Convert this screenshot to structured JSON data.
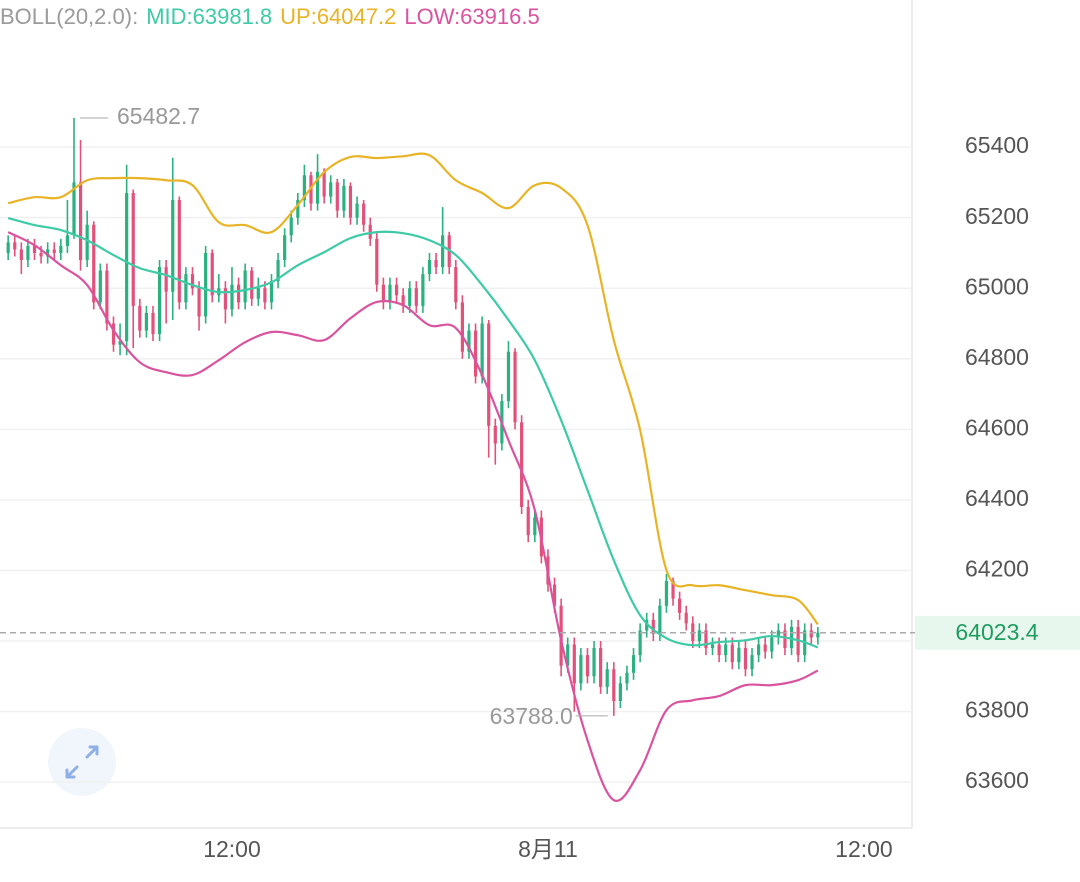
{
  "chart_data": {
    "type": "candlestick",
    "indicator": {
      "name": "BOLL(20,2.0):",
      "mid": "MID:63981.8",
      "up": "UP:64047.2",
      "low": "LOW:63916.5"
    },
    "up_color": "#2bb07f",
    "down_color": "#e2517a",
    "x": [
      0,
      1,
      2,
      3,
      4,
      5,
      6,
      7,
      8,
      9,
      10,
      11,
      12,
      13,
      14,
      15,
      16,
      17,
      18,
      19,
      20,
      21,
      22,
      23,
      24,
      25,
      26,
      27,
      28,
      29,
      30,
      31,
      32,
      33,
      34,
      35,
      36,
      37,
      38,
      39,
      40,
      41,
      42,
      43,
      44,
      45,
      46,
      47,
      48,
      49,
      50,
      51,
      52,
      53,
      54,
      55,
      56,
      57,
      58,
      59,
      60,
      61,
      62,
      63,
      64,
      65,
      66,
      67,
      68,
      69,
      70,
      71,
      72,
      73,
      74,
      75,
      76,
      77,
      78,
      79,
      80,
      81,
      82,
      83,
      84,
      85,
      86,
      87,
      88,
      89,
      90,
      91,
      92,
      93,
      94,
      95,
      96,
      97,
      98,
      99,
      100,
      101,
      102,
      103,
      104,
      105,
      106,
      107,
      108,
      109,
      110,
      111,
      112,
      113,
      114,
      115,
      116,
      117,
      118,
      119,
      120,
      121,
      122,
      123
    ],
    "open": [
      65100,
      65130,
      65110,
      65080,
      65120,
      65100,
      65090,
      65110,
      65100,
      65120,
      65150,
      65300,
      65080,
      65180,
      64960,
      65050,
      64900,
      64840,
      64850,
      65270,
      64950,
      64880,
      64930,
      64870,
      65060,
      64990,
      65250,
      64960,
      65040,
      65000,
      64920,
      65100,
      64980,
      65000,
      64940,
      65010,
      64960,
      65050,
      64970,
      65000,
      64960,
      65020,
      65080,
      65150,
      65200,
      65250,
      65320,
      65240,
      65330,
      65260,
      65300,
      65220,
      65290,
      65200,
      65240,
      65180,
      65140,
      65010,
      64960,
      65010,
      64980,
      64950,
      65000,
      64950,
      65040,
      65080,
      65060,
      65150,
      65060,
      64960,
      64820,
      64880,
      64750,
      64900,
      64610,
      64560,
      64680,
      64820,
      64620,
      64380,
      64300,
      64350,
      64240,
      64160,
      64100,
      63930,
      63990,
      63880,
      63960,
      63900,
      63980,
      63870,
      63920,
      63830,
      63880,
      63910,
      63960,
      64030,
      64060,
      64020,
      64100,
      64170,
      64120,
      64080,
      64050,
      64000,
      64030,
      63980,
      63990,
      63960,
      63990,
      63940,
      63980,
      63920,
      63960,
      63990,
      63970,
      64010,
      64030,
      63980,
      64040,
      63960,
      64030,
      64010
    ],
    "high": [
      65150,
      65150,
      65130,
      65140,
      65140,
      65120,
      65130,
      65130,
      65140,
      65250,
      65482.7,
      65420,
      65220,
      65190,
      65070,
      65070,
      64920,
      64900,
      65350,
      65280,
      64970,
      64950,
      64950,
      65080,
      65080,
      65370,
      65260,
      65060,
      65060,
      65020,
      65120,
      65110,
      65040,
      65020,
      65060,
      65030,
      65070,
      65060,
      65030,
      65020,
      65040,
      65100,
      65170,
      65220,
      65270,
      65350,
      65330,
      65380,
      65340,
      65320,
      65310,
      65310,
      65300,
      65260,
      65250,
      65200,
      65160,
      65030,
      65030,
      65030,
      65000,
      65020,
      65020,
      65060,
      65100,
      65100,
      65230,
      65160,
      65080,
      64980,
      64900,
      64900,
      64920,
      64910,
      64630,
      64700,
      64850,
      64830,
      64640,
      64400,
      64370,
      64370,
      64260,
      64180,
      64120,
      64010,
      64010,
      63980,
      63980,
      64000,
      64000,
      63940,
      63940,
      63900,
      63930,
      63980,
      64050,
      64080,
      64080,
      64120,
      64190,
      64180,
      64140,
      64100,
      64070,
      64050,
      64050,
      64010,
      64010,
      64010,
      64010,
      64000,
      64000,
      63980,
      64010,
      64010,
      64030,
      64050,
      64050,
      64060,
      64060,
      64050,
      64050,
      64040
    ],
    "low": [
      65080,
      65090,
      65040,
      65060,
      65080,
      65070,
      65070,
      65080,
      65080,
      65100,
      65140,
      65050,
      65060,
      64940,
      64940,
      64880,
      64820,
      64810,
      64810,
      64830,
      64860,
      64860,
      64850,
      64850,
      64900,
      64910,
      64940,
      64940,
      64980,
      64880,
      64900,
      64960,
      64960,
      64900,
      64920,
      64940,
      64940,
      64950,
      64950,
      64940,
      64940,
      65000,
      65060,
      65130,
      65180,
      65230,
      65220,
      65220,
      65240,
      65240,
      65200,
      65200,
      65180,
      65180,
      65160,
      65120,
      64990,
      64940,
      64940,
      64960,
      64930,
      64930,
      64930,
      64930,
      65020,
      65040,
      65040,
      65040,
      64940,
      64800,
      64800,
      64730,
      64730,
      64520,
      64500,
      64540,
      64660,
      64600,
      64360,
      64280,
      64280,
      64220,
      64140,
      64080,
      63900,
      63910,
      63800,
      63860,
      63880,
      63880,
      63850,
      63850,
      63788,
      63810,
      63860,
      63890,
      63940,
      64010,
      64000,
      64000,
      64080,
      64100,
      64060,
      64030,
      63980,
      63980,
      63960,
      63960,
      63940,
      63940,
      63920,
      63920,
      63900,
      63900,
      63940,
      63950,
      63950,
      63990,
      63960,
      63960,
      63940,
      63940,
      63990,
      63990
    ],
    "close": [
      65130,
      65110,
      65080,
      65120,
      65100,
      65090,
      65110,
      65100,
      65120,
      65150,
      65300,
      65080,
      65180,
      64960,
      65050,
      64900,
      64840,
      64850,
      65270,
      64950,
      64880,
      64930,
      64870,
      65060,
      64990,
      65250,
      64960,
      65040,
      65000,
      64920,
      65100,
      64980,
      65000,
      64940,
      65010,
      64960,
      65050,
      64970,
      65000,
      64960,
      65020,
      65080,
      65150,
      65200,
      65250,
      65320,
      65240,
      65330,
      65260,
      65300,
      65220,
      65290,
      65200,
      65240,
      65180,
      65140,
      65010,
      64960,
      65010,
      64980,
      64950,
      65000,
      64950,
      65040,
      65080,
      65060,
      65150,
      65060,
      64960,
      64820,
      64880,
      64750,
      64900,
      64610,
      64560,
      64680,
      64820,
      64620,
      64380,
      64300,
      64350,
      64240,
      64160,
      64100,
      63930,
      63990,
      63880,
      63960,
      63900,
      63980,
      63870,
      63920,
      63830,
      63880,
      63910,
      63960,
      64030,
      64060,
      64020,
      64100,
      64170,
      64120,
      64080,
      64050,
      64000,
      64030,
      63980,
      63990,
      63960,
      63990,
      63940,
      63980,
      63920,
      63960,
      63990,
      63970,
      64010,
      64030,
      63980,
      64040,
      63960,
      64030,
      64010,
      64023.4
    ],
    "series": [
      {
        "color": "#e8b325",
        "x": [
          0,
          4,
          8,
          12,
          16,
          20,
          24,
          28,
          32,
          36,
          40,
          44,
          48,
          52,
          56,
          60,
          64,
          68,
          72,
          76,
          80,
          84,
          88,
          92,
          96,
          100,
          104,
          108,
          112,
          116,
          120,
          123
        ],
        "values": [
          65241,
          65258,
          65258,
          65306,
          65312,
          65312,
          65306,
          65292,
          65187,
          65179,
          65159,
          65236,
          65329,
          65372,
          65369,
          65374,
          65377,
          65306,
          65270,
          65227,
          65292,
          65284,
          65179,
          64853,
          64598,
          64201,
          64158,
          64158,
          64144,
          64130,
          64116,
          64047.2
        ]
      },
      {
        "color": "#3dcaa6",
        "x": [
          0,
          4,
          8,
          12,
          16,
          20,
          24,
          28,
          32,
          36,
          40,
          44,
          48,
          52,
          56,
          60,
          64,
          68,
          72,
          76,
          80,
          84,
          88,
          92,
          96,
          100,
          104,
          108,
          112,
          116,
          120,
          123
        ],
        "values": [
          65199,
          65179,
          65165,
          65136,
          65094,
          65057,
          65037,
          65009,
          64989,
          64995,
          65017,
          65065,
          65102,
          65142,
          65159,
          65156,
          65136,
          65094,
          65009,
          64910,
          64796,
          64626,
          64428,
          64229,
          64073,
          64008,
          63988,
          63997,
          64002,
          64014,
          64002,
          63981.8
        ]
      },
      {
        "color": "#d9539f",
        "x": [
          0,
          4,
          8,
          12,
          16,
          20,
          24,
          28,
          32,
          36,
          40,
          44,
          48,
          52,
          56,
          60,
          64,
          68,
          72,
          76,
          80,
          84,
          88,
          92,
          96,
          100,
          104,
          108,
          112,
          116,
          120,
          123
        ],
        "values": [
          65159,
          65122,
          65065,
          65009,
          64881,
          64790,
          64762,
          64754,
          64796,
          64847,
          64876,
          64867,
          64853,
          64915,
          64961,
          64952,
          64895,
          64887,
          64754,
          64569,
          64371,
          64002,
          63719,
          63549,
          63634,
          63804,
          63832,
          63844,
          63875,
          63875,
          63889,
          63916.5
        ]
      }
    ],
    "max_label": "65482.7",
    "min_label": "63788.0",
    "last_price_label": "64023.4",
    "xlim": [
      -1.24,
      137.3
    ],
    "xticks": [
      {
        "value": 34,
        "label": "12:00"
      },
      {
        "value": 82,
        "label": "8月11"
      },
      {
        "value": 130,
        "label": "12:00"
      }
    ],
    "ylim": [
      63470,
      65817
    ],
    "yticks": [
      63600,
      63800,
      64000,
      64200,
      64400,
      64600,
      64800,
      65000,
      65200,
      65400
    ],
    "grid": true
  }
}
